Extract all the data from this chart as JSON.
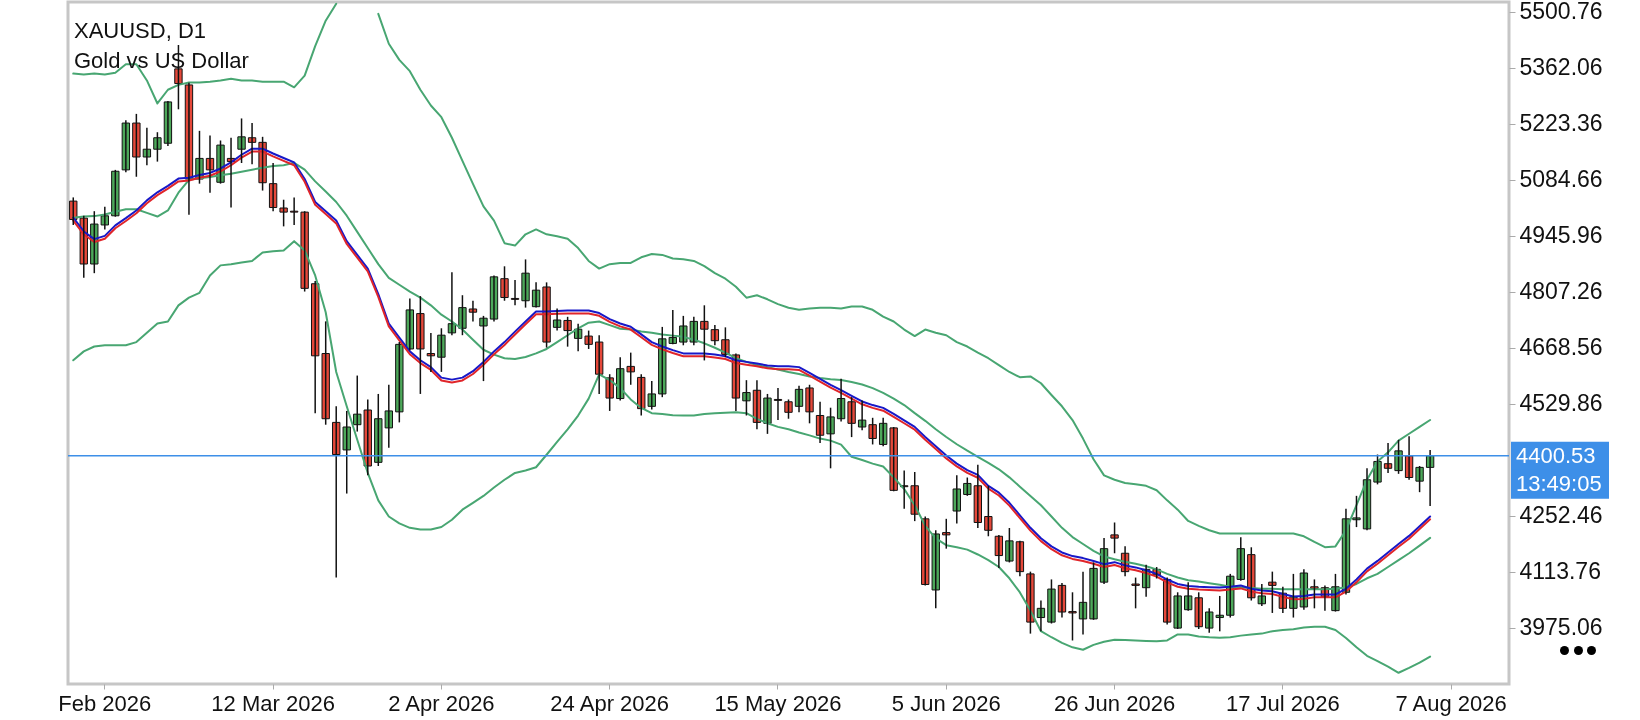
{
  "chart_data": {
    "type": "candlestick",
    "title": "XAUUSD, D1",
    "subtitle": "Gold vs US Dollar",
    "categories": [
      null,
      null,
      null,
      "Feb 2026",
      null,
      null,
      null,
      null,
      null,
      null,
      null,
      null,
      null,
      null,
      null,
      null,
      null,
      null,
      null,
      "12 Mar 2026",
      null,
      null,
      null,
      null,
      null,
      null,
      null,
      null,
      null,
      null,
      null,
      null,
      null,
      null,
      null,
      "2 Apr 2026",
      null,
      null,
      null,
      null,
      null,
      null,
      null,
      null,
      null,
      null,
      null,
      null,
      null,
      null,
      null,
      "24 Apr 2026",
      null,
      null,
      null,
      null,
      null,
      null,
      null,
      null,
      null,
      null,
      null,
      null,
      null,
      null,
      null,
      "15 May 2026",
      null,
      null,
      null,
      null,
      null,
      null,
      null,
      null,
      null,
      null,
      null,
      null,
      null,
      null,
      null,
      "5 Jun 2026",
      null,
      null,
      null,
      null,
      null,
      null,
      null,
      null,
      null,
      null,
      null,
      null,
      null,
      null,
      null,
      "26 Jun 2026",
      null,
      null,
      null,
      null,
      null,
      null,
      null,
      null,
      null,
      null,
      null,
      null,
      null,
      null,
      null,
      "17 Jul 2026",
      null,
      null,
      null,
      null,
      null,
      null,
      null,
      null,
      null,
      null,
      null,
      null,
      null,
      null,
      null,
      "7 Aug 2026",
      null,
      null,
      null,
      null,
      null
    ],
    "ohlc": [
      [
        5031.2,
        5040.3,
        4972.1,
        4985.7
      ],
      [
        4989.1,
        4994.8,
        4841.3,
        4875.4
      ],
      [
        4875.4,
        5006.2,
        4852.7,
        4974.3
      ],
      [
        4972.1,
        5017.5,
        4960.7,
        4994.8
      ],
      [
        4994.8,
        5108.5,
        4992.5,
        5105.1
      ],
      [
        5108.5,
        5231.3,
        5102.8,
        5224.5
      ],
      [
        5224.5,
        5247.2,
        5091.5,
        5140.4
      ],
      [
        5140.4,
        5213.1,
        5119.9,
        5159.7
      ],
      [
        5159.7,
        5201.8,
        5129.0,
        5188.1
      ],
      [
        5174.5,
        5279.1,
        5167.6,
        5276.8
      ],
      [
        5358.7,
        5417.8,
        5258.6,
        5322.3
      ],
      [
        5318.9,
        5324.6,
        4997.1,
        5085.8
      ],
      [
        5085.8,
        5205.2,
        5074.4,
        5136.9
      ],
      [
        5136.9,
        5193.8,
        5051.7,
        5108.5
      ],
      [
        5077.8,
        5181.3,
        5074.4,
        5169.9
      ],
      [
        5136.9,
        5188.1,
        5015.3,
        5129.0
      ],
      [
        5159.7,
        5235.9,
        5125.6,
        5190.4
      ],
      [
        5188.1,
        5224.5,
        5122.2,
        5176.7
      ],
      [
        5176.7,
        5190.4,
        5057.3,
        5076.7
      ],
      [
        5074.4,
        5125.6,
        5006.2,
        5015.3
      ],
      [
        5014.1,
        5034.6,
        4968.6,
        5003.9
      ],
      [
        5006.2,
        5040.3,
        4972.1,
        5003.9
      ],
      [
        5003.9,
        5006.2,
        4807.2,
        4815.1
      ],
      [
        4826.5,
        4833.3,
        4505.8,
        4648.0
      ],
      [
        4653.7,
        4733.3,
        4477.4,
        4492.2
      ],
      [
        4483.1,
        4522.9,
        4098.8,
        4403.5
      ],
      [
        4414.9,
        4511.5,
        4306.9,
        4471.7
      ],
      [
        4477.4,
        4599.1,
        4460.4,
        4503.5
      ],
      [
        4513.8,
        4539.9,
        4352.3,
        4375.1
      ],
      [
        4384.2,
        4553.6,
        4375.1,
        4492.2
      ],
      [
        4469.5,
        4576.3,
        4420.6,
        4511.5
      ],
      [
        4509.2,
        4682.1,
        4483.1,
        4676.4
      ],
      [
        4665.0,
        4790.1,
        4661.6,
        4761.7
      ],
      [
        4752.6,
        4795.8,
        4553.6,
        4665.0
      ],
      [
        4653.7,
        4704.8,
        4608.2,
        4648.0
      ],
      [
        4644.6,
        4716.2,
        4608.2,
        4699.1
      ],
      [
        4704.8,
        4854.9,
        4699.1,
        4727.6
      ],
      [
        4716.2,
        4798.1,
        4699.1,
        4767.4
      ],
      [
        4764.0,
        4784.4,
        4733.3,
        4756.0
      ],
      [
        4721.9,
        4746.9,
        4585.4,
        4741.2
      ],
      [
        4739.0,
        4847.0,
        4733.3,
        4843.6
      ],
      [
        4839.0,
        4869.7,
        4784.4,
        4792.4
      ],
      [
        4790.1,
        4835.6,
        4773.1,
        4787.8
      ],
      [
        4784.4,
        4886.8,
        4767.4,
        4852.7
      ],
      [
        4769.7,
        4829.9,
        4767.4,
        4810.6
      ],
      [
        4818.5,
        4829.9,
        4668.4,
        4682.1
      ],
      [
        4718.5,
        4765.1,
        4710.5,
        4736.7
      ],
      [
        4735.6,
        4744.6,
        4670.7,
        4710.5
      ],
      [
        4691.2,
        4727.6,
        4659.3,
        4713.9
      ],
      [
        4696.9,
        4710.5,
        4665.0,
        4676.4
      ],
      [
        4682.1,
        4699.1,
        4553.6,
        4602.5
      ],
      [
        4593.4,
        4602.5,
        4511.5,
        4543.4
      ],
      [
        4542.2,
        4644.6,
        4537.6,
        4616.1
      ],
      [
        4621.8,
        4655.9,
        4576.3,
        4608.2
      ],
      [
        4594.5,
        4602.5,
        4500.2,
        4517.2
      ],
      [
        4522.9,
        4585.4,
        4514.9,
        4553.6
      ],
      [
        4553.6,
        4719.6,
        4545.6,
        4690.1
      ],
      [
        4678.7,
        4761.7,
        4676.4,
        4693.5
      ],
      [
        4682.1,
        4746.9,
        4674.1,
        4721.9
      ],
      [
        4682.1,
        4744.6,
        4674.1,
        4733.3
      ],
      [
        4733.3,
        4773.1,
        4636.6,
        4713.9
      ],
      [
        4712.8,
        4724.2,
        4674.1,
        4685.5
      ],
      [
        4687.8,
        4718.5,
        4644.6,
        4651.4
      ],
      [
        4650.2,
        4653.7,
        4511.5,
        4543.4
      ],
      [
        4536.5,
        4587.7,
        4500.2,
        4557.0
      ],
      [
        4562.7,
        4587.7,
        4466.1,
        4483.1
      ],
      [
        4480.8,
        4553.6,
        4454.7,
        4543.4
      ],
      [
        4539.9,
        4568.4,
        4488.8,
        4537.6
      ],
      [
        4534.2,
        4539.9,
        4492.2,
        4508.1
      ],
      [
        4522.9,
        4574.1,
        4508.1,
        4564.9
      ],
      [
        4568.4,
        4576.3,
        4480.8,
        4509.2
      ],
      [
        4500.2,
        4534.2,
        4432.0,
        4451.3
      ],
      [
        4454.7,
        4519.5,
        4369.4,
        4496.7
      ],
      [
        4492.2,
        4591.1,
        4485.4,
        4542.2
      ],
      [
        4534.2,
        4545.6,
        4446.7,
        4480.8
      ],
      [
        4471.7,
        4537.6,
        4463.8,
        4488.8
      ],
      [
        4477.4,
        4494.5,
        4428.5,
        4443.3
      ],
      [
        4428.5,
        4494.5,
        4424.0,
        4480.8
      ],
      [
        4469.5,
        4471.7,
        4312.5,
        4314.8
      ],
      [
        4326.2,
        4363.7,
        4269.3,
        4323.9
      ],
      [
        4326.2,
        4360.3,
        4238.6,
        4255.7
      ],
      [
        4244.3,
        4250.0,
        4079.4,
        4081.7
      ],
      [
        4068.1,
        4215.9,
        4022.6,
        4206.8
      ],
      [
        4210.2,
        4244.3,
        4170.4,
        4204.5
      ],
      [
        4263.6,
        4352.3,
        4232.9,
        4318.2
      ],
      [
        4304.6,
        4346.6,
        4301.2,
        4331.9
      ],
      [
        4326.2,
        4378.5,
        4221.6,
        4235.2
      ],
      [
        4250.0,
        4326.2,
        4201.1,
        4215.9
      ],
      [
        4201.1,
        4204.5,
        4122.6,
        4153.3
      ],
      [
        4139.7,
        4221.6,
        4136.3,
        4189.7
      ],
      [
        4187.5,
        4189.7,
        4102.2,
        4113.5
      ],
      [
        4107.9,
        4113.5,
        3960.0,
        3988.5
      ],
      [
        3999.8,
        4041.9,
        3965.7,
        4022.6
      ],
      [
        3988.5,
        4094.2,
        3985.0,
        4070.3
      ],
      [
        4079.4,
        4085.1,
        3999.8,
        4013.5
      ],
      [
        4014.6,
        4062.3,
        3943.0,
        4011.2
      ],
      [
        3996.4,
        4113.5,
        3957.7,
        4037.4
      ],
      [
        3996.4,
        4136.3,
        3994.2,
        4121.5
      ],
      [
        4087.4,
        4196.5,
        4082.8,
        4170.4
      ],
      [
        4204.5,
        4235.2,
        4159.0,
        4196.5
      ],
      [
        4159.0,
        4176.1,
        4102.2,
        4113.5
      ],
      [
        4082.8,
        4098.8,
        4022.6,
        4079.4
      ],
      [
        4073.7,
        4130.6,
        4051.0,
        4119.2
      ],
      [
        4119.2,
        4124.9,
        4096.5,
        4105.6
      ],
      [
        4094.2,
        4098.8,
        3982.8,
        3988.5
      ],
      [
        3973.7,
        4062.3,
        3971.4,
        4053.3
      ],
      [
        4019.2,
        4087.4,
        4016.9,
        4053.3
      ],
      [
        4048.7,
        4062.3,
        3971.4,
        3977.1
      ],
      [
        3973.7,
        4022.6,
        3962.3,
        4013.5
      ],
      [
        3999.8,
        4053.3,
        3965.7,
        4005.5
      ],
      [
        4005.5,
        4107.9,
        3999.8,
        4102.2
      ],
      [
        4094.2,
        4198.8,
        4090.8,
        4170.4
      ],
      [
        4155.6,
        4173.8,
        4041.9,
        4048.7
      ],
      [
        4033.9,
        4082.8,
        4028.2,
        4053.3
      ],
      [
        4087.4,
        4113.5,
        4011.2,
        4079.4
      ],
      [
        4060.1,
        4076.0,
        4011.2,
        4022.6
      ],
      [
        4022.6,
        4107.9,
        3999.8,
        4051.0
      ],
      [
        4026.0,
        4119.2,
        4019.2,
        4110.1
      ],
      [
        4076.0,
        4094.2,
        4022.6,
        4071.5
      ],
      [
        4073.7,
        4079.4,
        4016.9,
        4051.0
      ],
      [
        4016.9,
        4107.9,
        4014.6,
        4076.0
      ],
      [
        4062.3,
        4269.3,
        4056.7,
        4244.3
      ],
      [
        4242.0,
        4301.2,
        4223.8,
        4246.6
      ],
      [
        4219.3,
        4369.4,
        4215.9,
        4341.0
      ],
      [
        4335.3,
        4403.5,
        4329.6,
        4386.4
      ],
      [
        4380.8,
        4432.0,
        4358.0,
        4369.4
      ],
      [
        4363.7,
        4439.9,
        4355.7,
        4412.6
      ],
      [
        4400.1,
        4449.0,
        4340.9,
        4346.6
      ],
      [
        4337.6,
        4375.1,
        4310.3,
        4371.7
      ],
      [
        4371.7,
        4414.9,
        4276.2,
        4400.53
      ],
      null,
      null,
      null,
      null,
      null,
      null,
      null
    ],
    "series": [
      {
        "type": "line",
        "color": "#48a672",
        "values": [
          5347,
          5345,
          5347,
          5345,
          5349,
          5370,
          5370,
          5330,
          5273,
          5307,
          5319,
          5325,
          5325,
          5327,
          5330,
          5334,
          5330,
          5330,
          5327,
          5327,
          5327,
          5313,
          5342,
          5415,
          5478,
          5520,
          null,
          null,
          null,
          5495,
          5421,
          5381,
          5353,
          5307,
          5268,
          5239,
          5188,
          5131,
          5074,
          5018,
          4983,
          4927,
          4921,
          4949,
          4961,
          4949,
          4944,
          4938,
          4915,
          4883,
          4864,
          4875,
          4878,
          4878,
          4892,
          4900,
          4898,
          4889,
          4887,
          4883,
          4870,
          4853,
          4839,
          4819,
          4792,
          4798,
          4788,
          4776,
          4767,
          4762,
          4765,
          4767,
          4767,
          4765,
          4770,
          4770,
          4762,
          4745,
          4733,
          4713,
          4697,
          4713,
          4705,
          4699,
          4682,
          4671,
          4656,
          4642,
          4625,
          4608,
          4595,
          4597,
          4580,
          4551,
          4523,
          4489,
          4443,
          4392,
          4352,
          4341,
          4333,
          4330,
          4326,
          4315,
          4290,
          4267,
          4239,
          4227,
          4216,
          4208,
          4208,
          4208,
          4208,
          4208,
          4208,
          4208,
          4208,
          4201,
          4187,
          4174,
          4176,
          4216,
          4278,
          4341,
          4386,
          4409,
          4438,
          4455,
          4472,
          4489,
          null,
          null,
          null,
          null,
          null,
          null,
          null
        ]
      },
      {
        "type": "line",
        "color": "#48a672",
        "values": [
          4990,
          4993,
          4994,
          4998,
          5005,
          5011,
          5011,
          5002,
          4993,
          5008,
          5052,
          5084,
          5088,
          5091,
          5095,
          5099,
          5104,
          5109,
          5114,
          5118,
          5120,
          5126,
          5109,
          5080,
          5055,
          5029,
          4995,
          4955,
          4915,
          4875,
          4841,
          4824,
          4807,
          4792,
          4773,
          4750,
          4733,
          4713,
          4688,
          4663,
          4651,
          4642,
          4640,
          4645,
          4654,
          4665,
          4682,
          4699,
          4716,
          4730,
          4733,
          4724,
          4715,
          4713,
          4708,
          4705,
          4701,
          4698,
          4695,
          4688,
          4679,
          4668,
          4656,
          4642,
          4633,
          4625,
          4620,
          4614,
          4608,
          4603,
          4597,
          4593,
          4590,
          4588,
          4583,
          4577,
          4568,
          4556,
          4542,
          4526,
          4506,
          4487,
          4466,
          4447,
          4429,
          4413,
          4398,
          4383,
          4367,
          4347,
          4324,
          4301,
          4278,
          4250,
          4222,
          4199,
          4182,
          4165,
          4151,
          4144,
          4138,
          4133,
          4127,
          4119,
          4108,
          4099,
          4092,
          4089,
          4085,
          4081,
          4076,
          4074,
          4073,
          4071,
          4071,
          4070,
          4070,
          4070,
          4070,
          4070,
          4071,
          4074,
          4083,
          4097,
          4108,
          4125,
          4142,
          4159,
          4178,
          4197,
          null,
          null,
          null,
          null,
          null,
          null,
          null
        ]
      },
      {
        "type": "line",
        "color": "#48a672",
        "values": [
          4637,
          4659,
          4671,
          4674,
          4674,
          4674,
          4682,
          4705,
          4728,
          4733,
          4773,
          4792,
          4804,
          4847,
          4872,
          4875,
          4879,
          4883,
          4904,
          4907,
          4909,
          4932,
          4909,
          4847,
          4756,
          4608,
          4523,
          4440,
          4358,
          4290,
          4250,
          4233,
          4222,
          4218,
          4218,
          4224,
          4242,
          4267,
          4284,
          4301,
          4322,
          4341,
          4358,
          4364,
          4372,
          4403,
          4435,
          4466,
          4500,
          4542,
          4602,
          4588,
          4568,
          4540,
          4519,
          4506,
          4504,
          4501,
          4500,
          4500,
          4504,
          4506,
          4507,
          4508,
          4506,
          4492,
          4481,
          4472,
          4466,
          4458,
          4451,
          4443,
          4438,
          4428,
          4398,
          4390,
          4381,
          4374,
          4347,
          4318,
          4278,
          4227,
          4196,
          4179,
          4174,
          4168,
          4156,
          4142,
          4125,
          4097,
          4062,
          4017,
          3966,
          3951,
          3937,
          3926,
          3920,
          3932,
          3940,
          3945,
          3944,
          3943,
          3942,
          3941,
          3943,
          3958,
          3958,
          3953,
          3951,
          3950,
          3951,
          3955,
          3958,
          3960,
          3966,
          3969,
          3971,
          3975,
          3977,
          3977,
          3969,
          3949,
          3926,
          3905,
          3892,
          3878,
          3863,
          3875,
          3888,
          3903,
          null,
          null,
          null,
          null,
          null,
          null,
          null
        ]
      },
      {
        "type": "line",
        "color": "#1818c8",
        "values": [
          4990,
          4956,
          4937,
          4945,
          4971,
          4989,
          5008,
          5033,
          5053,
          5069,
          5087,
          5089,
          5096,
          5101,
          5112,
          5127,
          5146,
          5161,
          5161,
          5149,
          5138,
          5127,
          5086,
          5029,
          5006,
          4983,
          4932,
          4898,
          4864,
          4801,
          4728,
          4693,
          4659,
          4637,
          4620,
          4594,
          4589,
          4594,
          4610,
          4633,
          4659,
          4682,
          4708,
          4733,
          4758,
          4758,
          4759,
          4760,
          4760,
          4760,
          4754,
          4739,
          4728,
          4720,
          4701,
          4682,
          4671,
          4662,
          4654,
          4654,
          4654,
          4651,
          4647,
          4637,
          4633,
          4629,
          4624,
          4622,
          4622,
          4620,
          4606,
          4591,
          4576,
          4563,
          4549,
          4535,
          4526,
          4519,
          4504,
          4488,
          4472,
          4447,
          4424,
          4401,
          4381,
          4365,
          4353,
          4326,
          4309,
          4284,
          4253,
          4222,
          4196,
          4176,
          4161,
          4152,
          4147,
          4140,
          4132,
          4137,
          4129,
          4124,
          4117,
          4108,
          4094,
          4083,
          4078,
          4076,
          4075,
          4074,
          4076,
          4079,
          4071,
          4067,
          4065,
          4058,
          4052,
          4053,
          4057,
          4057,
          4057,
          4071,
          4094,
          4121,
          4140,
          4161,
          4182,
          4202,
          4226,
          4250,
          null,
          null,
          null,
          null,
          null,
          null,
          null
        ]
      },
      {
        "type": "line",
        "color": "#e0252a",
        "values": [
          4983,
          4949,
          4930,
          4938,
          4964,
          4982,
          5001,
          5026,
          5046,
          5062,
          5080,
          5082,
          5089,
          5094,
          5105,
          5120,
          5139,
          5154,
          5154,
          5142,
          5131,
          5120,
          5079,
          5022,
          4999,
          4976,
          4925,
          4891,
          4857,
          4794,
          4721,
          4686,
          4652,
          4630,
          4613,
          4587,
          4582,
          4587,
          4603,
          4626,
          4652,
          4675,
          4701,
          4726,
          4751,
          4751,
          4752,
          4753,
          4753,
          4753,
          4747,
          4732,
          4721,
          4713,
          4694,
          4675,
          4664,
          4655,
          4647,
          4647,
          4647,
          4644,
          4640,
          4630,
          4626,
          4622,
          4617,
          4615,
          4615,
          4613,
          4599,
          4584,
          4569,
          4556,
          4542,
          4528,
          4519,
          4512,
          4497,
          4481,
          4465,
          4440,
          4417,
          4394,
          4374,
          4358,
          4346,
          4319,
          4302,
          4277,
          4246,
          4215,
          4189,
          4169,
          4154,
          4145,
          4140,
          4133,
          4125,
          4130,
          4122,
          4117,
          4110,
          4101,
          4087,
          4076,
          4071,
          4069,
          4068,
          4067,
          4069,
          4072,
          4064,
          4060,
          4058,
          4051,
          4045,
          4046,
          4050,
          4050,
          4050,
          4064,
          4087,
          4114,
          4133,
          4154,
          4175,
          4195,
          4219,
          4243,
          null,
          null,
          null,
          null,
          null,
          null,
          null
        ]
      }
    ],
    "ylim": [
      3835.2,
      5524.3
    ],
    "yticks": [
      3975.06,
      4113.76,
      4252.46,
      4529.86,
      4668.56,
      4807.26,
      4945.96,
      5084.66,
      5223.36,
      5362.06,
      5500.76
    ],
    "ref_lines": [
      {
        "axis": "y",
        "value": 4400.53,
        "label": "4400.53",
        "color": "#3d8fe8"
      }
    ],
    "annotations": [
      "13:49:05"
    ]
  }
}
